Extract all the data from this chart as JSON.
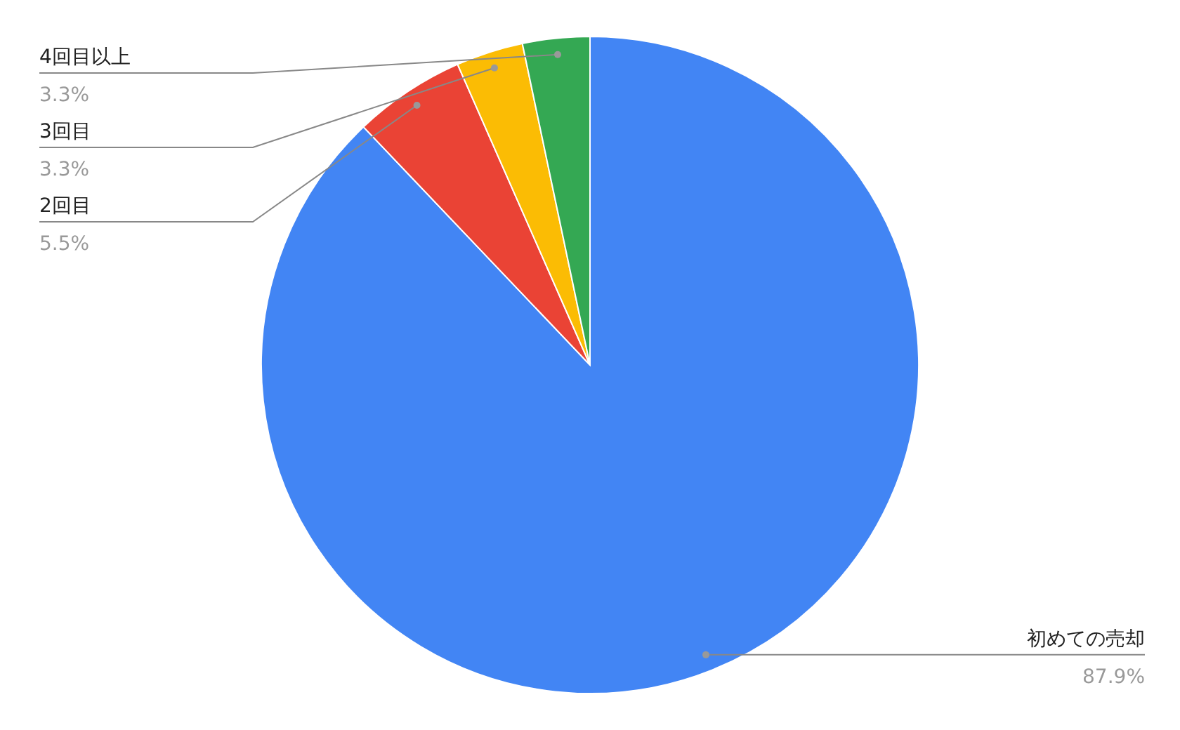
{
  "chart_data": {
    "type": "pie",
    "categories": [
      "初めての売却",
      "2回目",
      "3回目",
      "4回目以上"
    ],
    "values": [
      87.9,
      5.5,
      3.3,
      3.3
    ],
    "value_labels": [
      "87.9%",
      "5.5%",
      "3.3%",
      "3.3%"
    ],
    "colors": [
      "#4285f4",
      "#ea4335",
      "#fbbc04",
      "#34a853"
    ]
  }
}
